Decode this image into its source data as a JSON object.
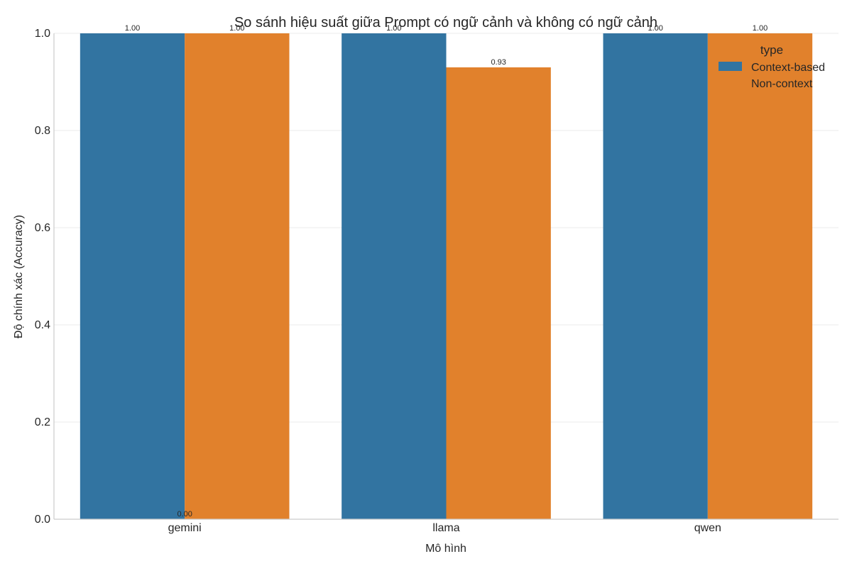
{
  "chart_data": {
    "type": "bar",
    "title": "So sánh hiệu suất giữa Prompt có ngữ cảnh và không có ngữ cảnh",
    "xlabel": "Mô hình",
    "ylabel": "Độ chính xác (Accuracy)",
    "categories": [
      "gemini",
      "llama",
      "qwen"
    ],
    "series": [
      {
        "name": "Context-based",
        "color": "#3274a1",
        "values": [
          1.0,
          1.0,
          1.0
        ],
        "labels": [
          "1.00",
          "1.00",
          "1.00"
        ]
      },
      {
        "name": "Non-context",
        "color": "#e1812c",
        "values": [
          1.0,
          0.93,
          1.0
        ],
        "labels": [
          "1.00",
          "0.93",
          "1.00"
        ]
      }
    ],
    "extra_labels": [
      {
        "text": "0.00",
        "category": "gemini",
        "value": 0.0
      }
    ],
    "ylim": [
      0,
      1.0
    ],
    "yticks": [
      "0.0",
      "0.2",
      "0.4",
      "0.6",
      "0.8",
      "1.0"
    ],
    "grid": true,
    "legend": {
      "title": "type",
      "placement": "top-right"
    }
  }
}
